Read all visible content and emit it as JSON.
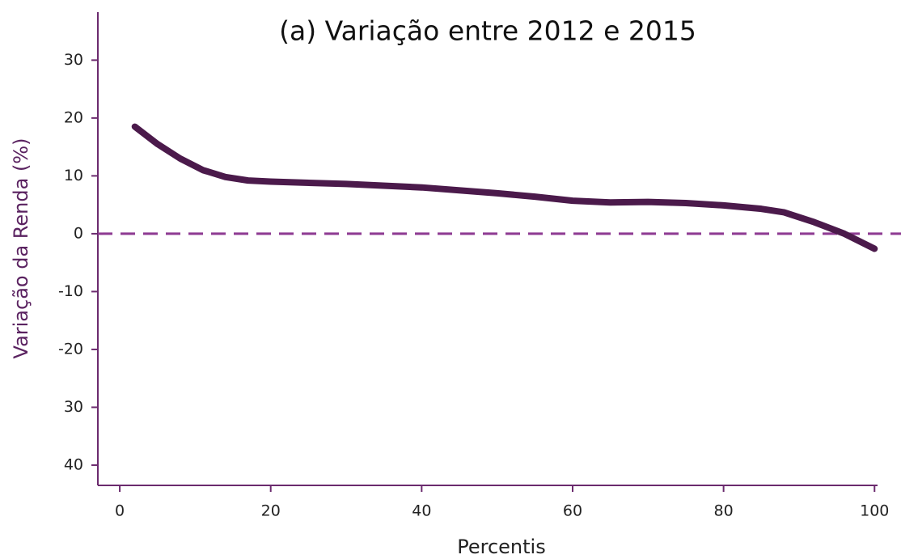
{
  "chart_data": {
    "type": "line",
    "title": "(a) Variação entre 2012 e 2015",
    "xlabel": "Percentis",
    "ylabel": "Variação da Renda (%)",
    "x": [
      2,
      5,
      8,
      11,
      14,
      17,
      20,
      30,
      40,
      50,
      55,
      60,
      65,
      70,
      75,
      80,
      85,
      88,
      92,
      96,
      100
    ],
    "series": [
      {
        "name": "Variação",
        "color": "#4b1a4b",
        "values": [
          18.5,
          15.5,
          13,
          11,
          9.8,
          9.2,
          9.0,
          8.6,
          8.0,
          7.0,
          6.4,
          5.7,
          5.4,
          5.5,
          5.3,
          4.9,
          4.3,
          3.7,
          2.0,
          0,
          -2.6
        ]
      }
    ],
    "hline": 0,
    "hline_color": "#8e3a92",
    "axis_color": "#6b2a6e",
    "xlim": [
      -2.9,
      100.4
    ],
    "ylim": [
      -43.5,
      38.3
    ],
    "xticks": [
      0,
      20,
      40,
      60,
      80,
      100
    ],
    "yticks": [
      30,
      20,
      10,
      0,
      -10,
      -20,
      {
        "value": -30,
        "label": "30"
      },
      {
        "value": -40,
        "label": "40"
      }
    ],
    "grid": false
  }
}
